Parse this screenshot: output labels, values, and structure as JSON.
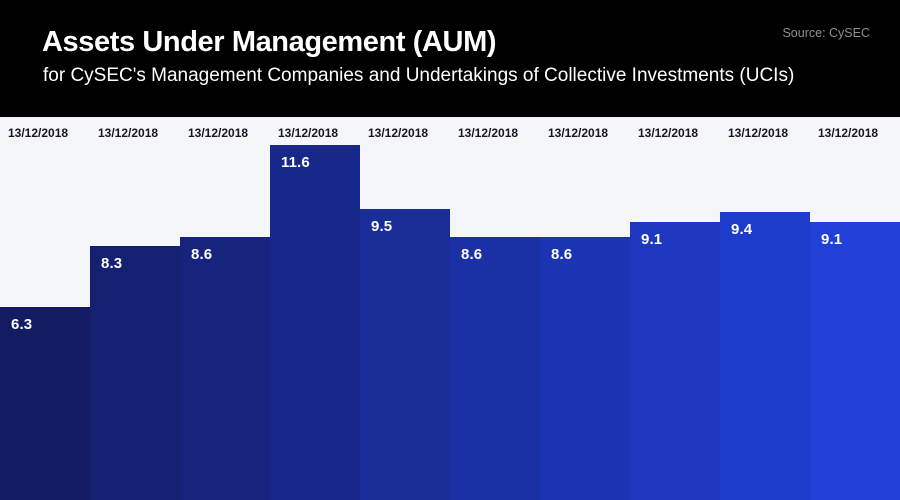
{
  "header": {
    "title": "Assets Under Management (AUM)",
    "subtitle": "for CySEC's Management Companies and Undertakings of Collective Investments (UCIs)",
    "source": "Source: CySEC"
  },
  "chart_data": {
    "type": "bar",
    "title": "Assets Under Management (AUM)",
    "subtitle": "for CySEC's Management Companies and Undertakings of Collective Investments (UCIs)",
    "source": "Source: CySEC",
    "categories": [
      "13/12/2018",
      "13/12/2018",
      "13/12/2018",
      "13/12/2018",
      "13/12/2018",
      "13/12/2018",
      "13/12/2018",
      "13/12/2018",
      "13/12/2018",
      "13/12/2018"
    ],
    "values": [
      6.3,
      8.3,
      8.6,
      11.6,
      9.5,
      8.6,
      8.6,
      9.1,
      9.4,
      9.1
    ],
    "value_labels": [
      "6.3",
      "8.3",
      "8.6",
      "11.6",
      "9.5",
      "8.6",
      "8.6",
      "9.1",
      "9.4",
      "9.1"
    ],
    "bar_colors": [
      "#131c63",
      "#142070",
      "#16247d",
      "#17288a",
      "#192c97",
      "#1a30a4",
      "#1b34b1",
      "#1d38be",
      "#1e3ccb",
      "#2040d8"
    ],
    "xlabel": "",
    "ylabel": "",
    "ylim": [
      0,
      12.5
    ],
    "grid": false,
    "legend": false,
    "data_labels_inside_bars": true,
    "category_labels_position": "top",
    "plot_background": "#f5f6fa",
    "header_background": "#000000",
    "label_text_color": "#ffffff",
    "date_text_color": "#17171d",
    "source_text_color": "#8f8f94"
  }
}
